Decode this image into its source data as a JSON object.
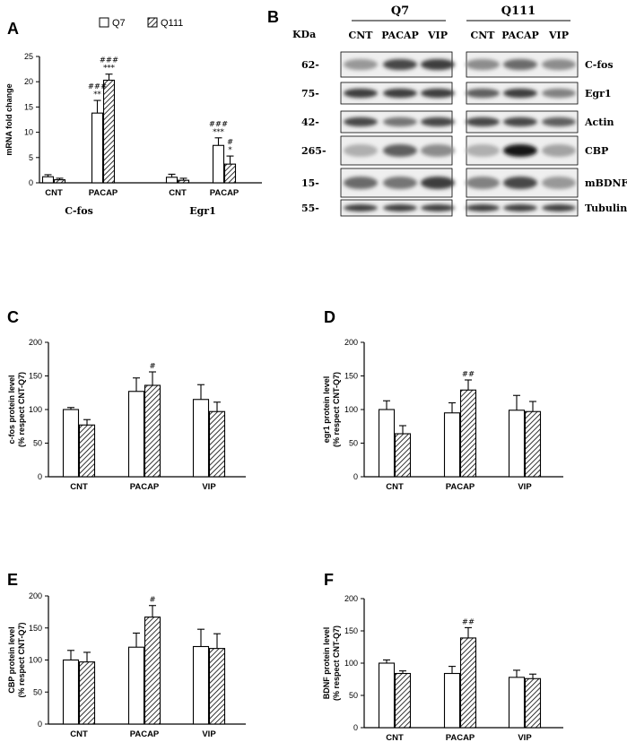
{
  "legend": {
    "series_a": "Q7",
    "series_b": "Q111"
  },
  "panel_labels": {
    "a": "A",
    "b": "B",
    "c": "C",
    "d": "D",
    "e": "E",
    "f": "F"
  },
  "colors": {
    "series_a": "#ffffff",
    "series_b_hatch": "#000000",
    "stroke": "#000000"
  },
  "chart_data": [
    {
      "panel": "A",
      "type": "bar",
      "ylabel": "mRNA fold change",
      "ylim": [
        0,
        25
      ],
      "yticks": [
        0,
        5,
        10,
        15,
        20,
        25
      ],
      "groups": [
        "C-fos",
        "Egr1"
      ],
      "categories": [
        "CNT",
        "PACAP",
        "CNT",
        "PACAP"
      ],
      "series": [
        {
          "name": "Q7",
          "values": [
            1.2,
            13.8,
            1.1,
            7.4
          ],
          "errors": [
            0.4,
            2.5,
            0.6,
            1.5
          ]
        },
        {
          "name": "Q111",
          "values": [
            0.6,
            20.3,
            0.5,
            3.7
          ],
          "errors": [
            0.3,
            1.2,
            0.4,
            1.6
          ]
        }
      ],
      "annotations": [
        {
          "series": 0,
          "index": 1,
          "lines": [
            "###",
            "**"
          ]
        },
        {
          "series": 1,
          "index": 1,
          "lines": [
            "###",
            "***"
          ]
        },
        {
          "series": 0,
          "index": 3,
          "lines": [
            "###",
            "***"
          ]
        },
        {
          "series": 1,
          "index": 3,
          "lines": [
            "#",
            "*"
          ]
        }
      ]
    },
    {
      "panel": "C",
      "type": "bar",
      "ylabel": [
        "c-fos protein level",
        "(% respect CNT-Q7)"
      ],
      "ylim": [
        0,
        200
      ],
      "yticks": [
        0,
        50,
        100,
        150,
        200
      ],
      "categories": [
        "CNT",
        "PACAP",
        "VIP"
      ],
      "series": [
        {
          "name": "Q7",
          "values": [
            100,
            127,
            115
          ],
          "errors": [
            3,
            20,
            22
          ]
        },
        {
          "name": "Q111",
          "values": [
            77,
            136,
            97
          ],
          "errors": [
            8,
            20,
            14
          ]
        }
      ],
      "annotations": [
        {
          "series": 1,
          "index": 1,
          "lines": [
            "#"
          ]
        }
      ]
    },
    {
      "panel": "D",
      "type": "bar",
      "ylabel": [
        "egr1 protein level",
        "(% respect CNT-Q7)"
      ],
      "ylim": [
        0,
        200
      ],
      "yticks": [
        0,
        50,
        100,
        150,
        200
      ],
      "categories": [
        "CNT",
        "PACAP",
        "VIP"
      ],
      "series": [
        {
          "name": "Q7",
          "values": [
            100,
            95,
            99
          ],
          "errors": [
            13,
            15,
            22
          ]
        },
        {
          "name": "Q111",
          "values": [
            64,
            129,
            97
          ],
          "errors": [
            12,
            15,
            15
          ]
        }
      ],
      "annotations": [
        {
          "series": 1,
          "index": 1,
          "lines": [
            "##"
          ]
        }
      ]
    },
    {
      "panel": "E",
      "type": "bar",
      "ylabel": [
        "CBP protein level",
        "(% respect CNT-Q7)"
      ],
      "ylim": [
        0,
        200
      ],
      "yticks": [
        0,
        50,
        100,
        150,
        200
      ],
      "categories": [
        "CNT",
        "PACAP",
        "VIP"
      ],
      "series": [
        {
          "name": "Q7",
          "values": [
            100,
            120,
            121
          ],
          "errors": [
            15,
            22,
            27
          ]
        },
        {
          "name": "Q111",
          "values": [
            97,
            167,
            118
          ],
          "errors": [
            15,
            18,
            23
          ]
        }
      ],
      "annotations": [
        {
          "series": 1,
          "index": 1,
          "lines": [
            "#"
          ]
        }
      ]
    },
    {
      "panel": "F",
      "type": "bar",
      "ylabel": [
        "BDNF protein level",
        "(% respect CNT-Q7)"
      ],
      "ylim": [
        0,
        200
      ],
      "yticks": [
        0,
        50,
        100,
        150,
        200
      ],
      "categories": [
        "CNT",
        "PACAP",
        "VIP"
      ],
      "series": [
        {
          "name": "Q7",
          "values": [
            100,
            84,
            78
          ],
          "errors": [
            5,
            11,
            11
          ]
        },
        {
          "name": "Q111",
          "values": [
            84,
            139,
            76
          ],
          "errors": [
            4,
            16,
            7
          ]
        }
      ],
      "annotations": [
        {
          "series": 1,
          "index": 1,
          "lines": [
            "##"
          ]
        }
      ]
    }
  ],
  "blot": {
    "kda_label": "KDa",
    "group_titles": [
      "Q7",
      "Q111"
    ],
    "lanes": [
      "CNT",
      "PACAP",
      "VIP"
    ],
    "rows": [
      {
        "kda": "62-",
        "protein": "C-fos"
      },
      {
        "kda": "75-",
        "protein": "Egr1"
      },
      {
        "kda": "42-",
        "protein": "Actin"
      },
      {
        "kda": "265-",
        "protein": "CBP"
      },
      {
        "kda": "15-",
        "protein": "mBDNF"
      },
      {
        "kda": "55-",
        "protein": "Tubulin"
      }
    ]
  }
}
